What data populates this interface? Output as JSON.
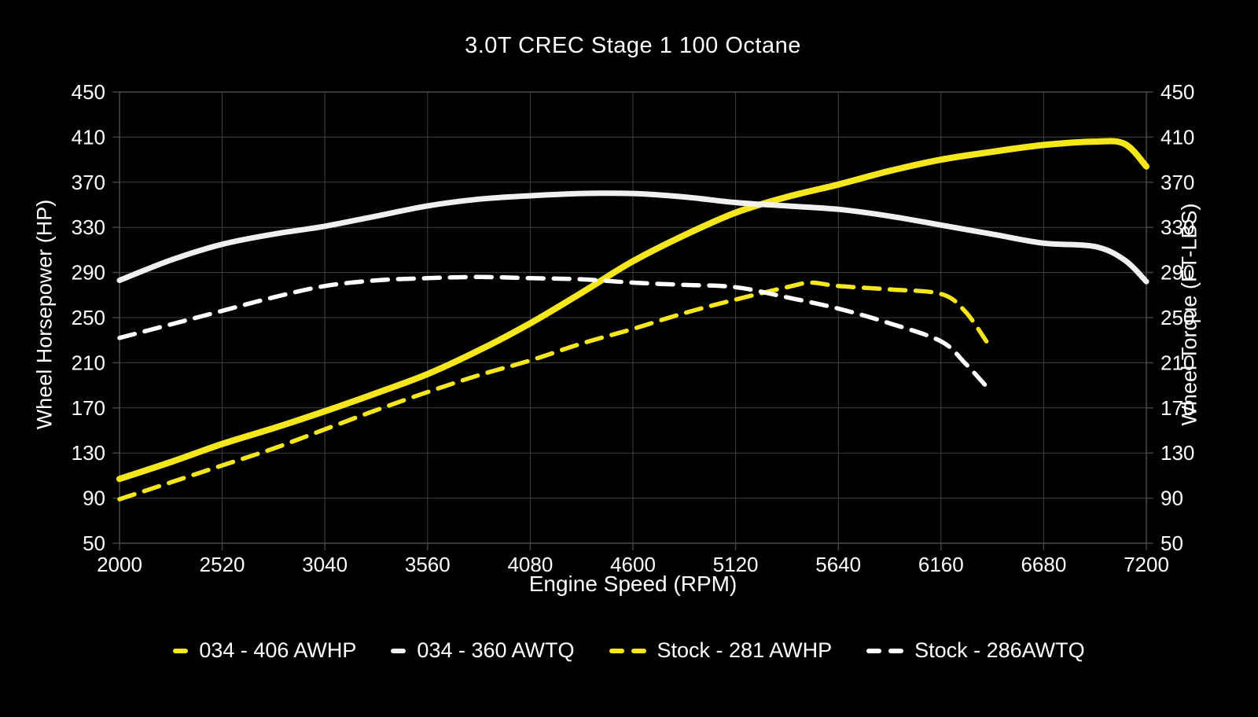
{
  "chart": {
    "title": "3.0T CREC Stage 1 100 Octane",
    "x_axis_label": "Engine Speed (RPM)",
    "left_axis_label": "Wheel Horsepower (HP)",
    "right_axis_label": "Wheel Torque (FT-LBS)"
  },
  "legend": {
    "items": [
      {
        "label": "034 - 406 AWHP",
        "color": "#f6e71c",
        "style": "solid"
      },
      {
        "label": "034 - 360 AWTQ",
        "color": "#f2f2f2",
        "style": "solid"
      },
      {
        "label": "Stock - 281 AWHP",
        "color": "#f6e71c",
        "style": "dashed"
      },
      {
        "label": "Stock - 286AWTQ",
        "color": "#ffffff",
        "style": "dashed"
      }
    ]
  },
  "chart_data": {
    "type": "line",
    "title": "3.0T CREC Stage 1 100 Octane",
    "xlabel": "Engine Speed (RPM)",
    "ylabel_left": "Wheel Horsepower (HP)",
    "ylabel_right": "Wheel Torque (FT-LBS)",
    "xlim": [
      2000,
      7200
    ],
    "ylim": [
      50,
      450
    ],
    "x_ticks": [
      2000,
      2520,
      3040,
      3560,
      4080,
      4600,
      5120,
      5640,
      6160,
      6680,
      7200
    ],
    "y_ticks": [
      50,
      90,
      130,
      170,
      210,
      250,
      290,
      330,
      370,
      410,
      450
    ],
    "grid": true,
    "legend_position": "bottom",
    "colors": {
      "background": "#000000",
      "grid": "#414141",
      "frame": "#4a4a4a",
      "text": "#ffffff"
    },
    "series": [
      {
        "name": "034 - 406 AWHP",
        "axis": "HP",
        "color": "#f6e71c",
        "dash": false,
        "width": 8,
        "points": [
          [
            2000,
            107
          ],
          [
            2260,
            122
          ],
          [
            2520,
            138
          ],
          [
            2780,
            152
          ],
          [
            3040,
            167
          ],
          [
            3300,
            183
          ],
          [
            3560,
            200
          ],
          [
            3820,
            221
          ],
          [
            4080,
            245
          ],
          [
            4340,
            272
          ],
          [
            4600,
            300
          ],
          [
            4860,
            323
          ],
          [
            5120,
            343
          ],
          [
            5380,
            357
          ],
          [
            5640,
            368
          ],
          [
            5900,
            380
          ],
          [
            6160,
            390
          ],
          [
            6420,
            397
          ],
          [
            6680,
            403
          ],
          [
            6940,
            406
          ],
          [
            7090,
            404
          ],
          [
            7200,
            384
          ]
        ]
      },
      {
        "name": "034 - 360 AWTQ",
        "axis": "FT-LBS",
        "color": "#f0f0f0",
        "dash": false,
        "width": 7,
        "points": [
          [
            2000,
            283
          ],
          [
            2260,
            301
          ],
          [
            2520,
            315
          ],
          [
            2780,
            324
          ],
          [
            3040,
            331
          ],
          [
            3300,
            340
          ],
          [
            3560,
            349
          ],
          [
            3820,
            355
          ],
          [
            4080,
            358
          ],
          [
            4340,
            360
          ],
          [
            4600,
            360
          ],
          [
            4860,
            357
          ],
          [
            5120,
            352
          ],
          [
            5380,
            349
          ],
          [
            5640,
            346
          ],
          [
            5900,
            340
          ],
          [
            6160,
            332
          ],
          [
            6420,
            324
          ],
          [
            6680,
            316
          ],
          [
            6940,
            313
          ],
          [
            7090,
            301
          ],
          [
            7200,
            282
          ]
        ]
      },
      {
        "name": "Stock - 281 AWHP",
        "axis": "HP",
        "color": "#f6e71c",
        "dash": true,
        "width": 5.5,
        "points": [
          [
            2000,
            89
          ],
          [
            2260,
            104
          ],
          [
            2520,
            119
          ],
          [
            2780,
            134
          ],
          [
            3040,
            151
          ],
          [
            3300,
            168
          ],
          [
            3560,
            184
          ],
          [
            3820,
            199
          ],
          [
            4080,
            212
          ],
          [
            4340,
            227
          ],
          [
            4600,
            240
          ],
          [
            4860,
            254
          ],
          [
            5120,
            266
          ],
          [
            5380,
            277
          ],
          [
            5500,
            281
          ],
          [
            5640,
            278
          ],
          [
            5900,
            275
          ],
          [
            6160,
            271
          ],
          [
            6280,
            256
          ],
          [
            6390,
            229
          ]
        ]
      },
      {
        "name": "Stock - 286AWTQ",
        "axis": "FT-LBS",
        "color": "#ffffff",
        "dash": true,
        "width": 5.5,
        "points": [
          [
            2000,
            232
          ],
          [
            2260,
            244
          ],
          [
            2520,
            256
          ],
          [
            2780,
            268
          ],
          [
            3040,
            278
          ],
          [
            3300,
            283
          ],
          [
            3560,
            285
          ],
          [
            3820,
            286
          ],
          [
            4080,
            285
          ],
          [
            4340,
            284
          ],
          [
            4600,
            281
          ],
          [
            4860,
            279
          ],
          [
            5120,
            277
          ],
          [
            5380,
            268
          ],
          [
            5640,
            258
          ],
          [
            5900,
            245
          ],
          [
            6160,
            229
          ],
          [
            6280,
            210
          ],
          [
            6390,
            189
          ]
        ]
      }
    ]
  }
}
